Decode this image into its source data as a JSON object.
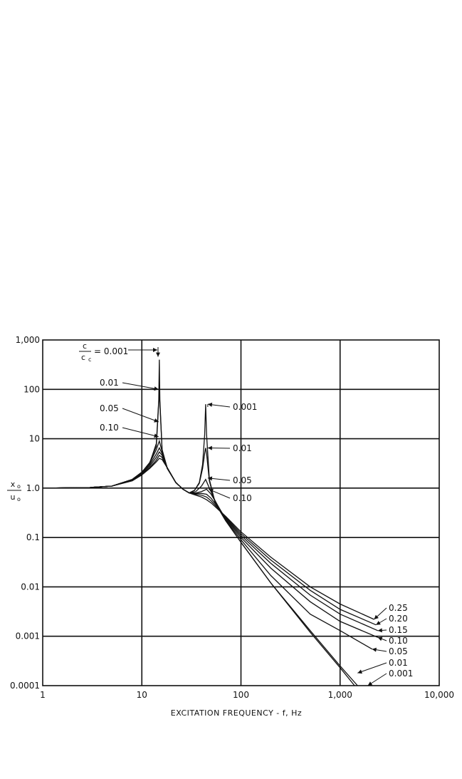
{
  "chart_data": {
    "type": "line",
    "title": "",
    "xlabel": "EXCITATION FREQUENCY - f, Hz",
    "ylabel": "x0/u0",
    "ylabel_parts": {
      "num": "x",
      "num_sub": "o",
      "den": "u",
      "den_sub": "o"
    },
    "xscale": "log",
    "yscale": "log",
    "xlim": [
      1,
      10000
    ],
    "ylim": [
      0.0001,
      1000
    ],
    "grid": true,
    "x_ticks": [
      "1",
      "10",
      "100",
      "1,000",
      "10,000"
    ],
    "y_ticks": [
      "1,000",
      "100",
      "10",
      "1.0",
      "0.1",
      "0.01",
      "0.001",
      "0.0001"
    ],
    "damping_label": {
      "num": "c",
      "den": "c",
      "den_sub": "c",
      "eq": "= 0.001"
    },
    "peak_labels_first": [
      {
        "text": "0.01",
        "x": 15,
        "y": 100
      },
      {
        "text": "0.05",
        "x": 15,
        "y": 22
      },
      {
        "text": "0.10",
        "x": 15,
        "y": 11
      }
    ],
    "peak_labels_second": [
      {
        "text": "0.001",
        "x": 44,
        "y": 50
      },
      {
        "text": "0.01",
        "x": 44,
        "y": 6.5
      },
      {
        "text": "0.05",
        "x": 44,
        "y": 1.6
      },
      {
        "text": "0.10",
        "x": 45,
        "y": 0.95
      }
    ],
    "tail_labels": [
      {
        "text": "0.25",
        "x": 2200,
        "y": 0.0022
      },
      {
        "text": "0.20",
        "x": 2300,
        "y": 0.0017
      },
      {
        "text": "0.15",
        "x": 2400,
        "y": 0.0013
      },
      {
        "text": "0.10",
        "x": 2400,
        "y": 0.00095
      },
      {
        "text": "0.05",
        "x": 2100,
        "y": 0.00055
      },
      {
        "text": "0.01",
        "x": 1500,
        "y": 0.00018
      },
      {
        "text": "0.001",
        "x": 1900,
        "y": 0.0001
      }
    ],
    "series": [
      {
        "name": "0.001",
        "x": [
          1,
          3,
          5,
          8,
          10,
          12,
          14,
          14.8,
          15,
          15.2,
          16,
          18,
          22,
          26,
          30,
          34,
          38,
          41,
          43,
          44,
          45,
          48,
          55,
          70,
          100,
          200,
          500,
          1000,
          1400
        ],
        "y": [
          1,
          1.03,
          1.1,
          1.5,
          2.1,
          3.2,
          8,
          60,
          400,
          60,
          6,
          2.5,
          1.3,
          0.95,
          0.8,
          0.9,
          1.3,
          3,
          12,
          50,
          12,
          1.5,
          0.5,
          0.22,
          0.08,
          0.012,
          0.0012,
          0.00023,
          0.0001
        ]
      },
      {
        "name": "0.01",
        "x": [
          1,
          3,
          5,
          8,
          10,
          12,
          14,
          15,
          16,
          18,
          22,
          26,
          30,
          34,
          38,
          41,
          43,
          44,
          45,
          48,
          55,
          70,
          100,
          200,
          500,
          1000,
          1500
        ],
        "y": [
          1,
          1.03,
          1.1,
          1.5,
          2.1,
          3.3,
          7,
          90,
          6,
          2.6,
          1.3,
          0.95,
          0.8,
          0.9,
          1.25,
          2.5,
          5,
          6.5,
          5,
          1.4,
          0.5,
          0.22,
          0.08,
          0.012,
          0.0013,
          0.00025,
          0.0001
        ]
      },
      {
        "name": "0.05",
        "x": [
          1,
          3,
          5,
          8,
          10,
          12,
          14,
          15,
          16,
          18,
          22,
          26,
          30,
          35,
          40,
          44,
          48,
          55,
          70,
          100,
          200,
          500,
          1000,
          2100
        ],
        "y": [
          1,
          1.03,
          1.1,
          1.5,
          2.1,
          3.2,
          6,
          9,
          5.5,
          2.6,
          1.3,
          0.95,
          0.8,
          0.85,
          1.1,
          1.5,
          1.0,
          0.55,
          0.23,
          0.09,
          0.017,
          0.0028,
          0.0013,
          0.00055
        ]
      },
      {
        "name": "0.10",
        "x": [
          1,
          3,
          5,
          8,
          10,
          12,
          14,
          15,
          16,
          18,
          22,
          26,
          30,
          35,
          40,
          45,
          50,
          58,
          70,
          100,
          200,
          500,
          1000,
          2400
        ],
        "y": [
          1,
          1.03,
          1.1,
          1.5,
          2.0,
          3.0,
          4.9,
          6.5,
          5.0,
          2.6,
          1.3,
          0.95,
          0.8,
          0.8,
          0.85,
          0.95,
          0.75,
          0.45,
          0.24,
          0.1,
          0.024,
          0.005,
          0.002,
          0.00095
        ]
      },
      {
        "name": "0.15",
        "x": [
          1,
          3,
          5,
          8,
          10,
          12,
          14,
          15,
          16,
          18,
          22,
          26,
          30,
          35,
          40,
          45,
          50,
          58,
          70,
          100,
          200,
          500,
          1000,
          2400
        ],
        "y": [
          1,
          1.03,
          1.1,
          1.45,
          1.95,
          2.8,
          4.2,
          5.4,
          4.6,
          2.6,
          1.3,
          0.95,
          0.8,
          0.78,
          0.78,
          0.75,
          0.62,
          0.42,
          0.25,
          0.11,
          0.03,
          0.0068,
          0.0028,
          0.0013
        ]
      },
      {
        "name": "0.20",
        "x": [
          1,
          3,
          5,
          8,
          10,
          12,
          14,
          15,
          16,
          18,
          22,
          26,
          30,
          35,
          40,
          45,
          50,
          58,
          70,
          100,
          200,
          500,
          1000,
          2300
        ],
        "y": [
          1,
          1.03,
          1.1,
          1.45,
          1.9,
          2.6,
          3.7,
          4.6,
          4.2,
          2.6,
          1.3,
          0.95,
          0.8,
          0.75,
          0.72,
          0.66,
          0.55,
          0.4,
          0.26,
          0.12,
          0.035,
          0.0085,
          0.0035,
          0.0017
        ]
      },
      {
        "name": "0.25",
        "x": [
          1,
          3,
          5,
          8,
          10,
          12,
          14,
          15,
          16,
          18,
          22,
          26,
          30,
          35,
          40,
          45,
          50,
          58,
          70,
          100,
          200,
          500,
          1000,
          2200
        ],
        "y": [
          1,
          1.03,
          1.1,
          1.4,
          1.85,
          2.5,
          3.4,
          4.0,
          3.8,
          2.6,
          1.3,
          0.95,
          0.8,
          0.72,
          0.66,
          0.58,
          0.5,
          0.38,
          0.27,
          0.13,
          0.04,
          0.01,
          0.0045,
          0.0022
        ]
      }
    ]
  }
}
